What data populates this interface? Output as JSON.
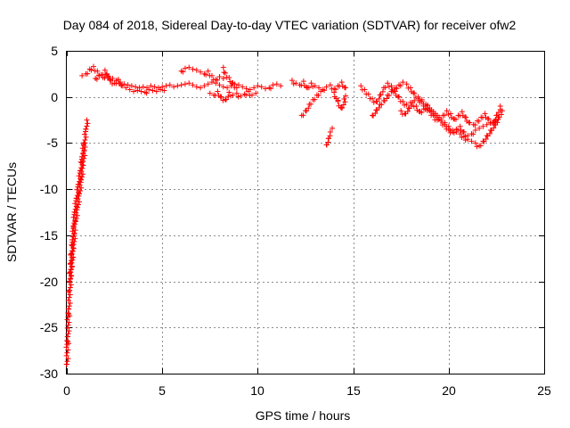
{
  "chart_data": {
    "type": "scatter",
    "title": "Day 084 of 2018, Sidereal Day-to-day VTEC variation (SDTVAR) for receiver ofw2",
    "xlabel": "GPS time / hours",
    "ylabel": "SDTVAR / TECUs",
    "xlim": [
      0,
      25
    ],
    "ylim": [
      -30,
      5
    ],
    "x_ticks": [
      0,
      5,
      10,
      15,
      20,
      25
    ],
    "y_ticks": [
      -30,
      -25,
      -20,
      -15,
      -10,
      -5,
      0,
      5
    ],
    "grid": true,
    "marker": "+",
    "color": "#ff0000",
    "series": [
      {
        "name": "SDTVAR",
        "segments": [
          {
            "x": [
              0.0,
              0.05,
              0.1,
              0.15,
              0.2,
              0.25,
              0.3,
              0.35,
              0.4,
              0.5,
              0.6,
              0.7,
              0.8,
              0.9,
              1.0,
              1.05
            ],
            "y": [
              -29,
              -26,
              -23,
              -21,
              -19,
              -17,
              -15.5,
              -14,
              -12.5,
              -11,
              -9.5,
              -8,
              -6.5,
              -5,
              -3.5,
              -2.5
            ]
          },
          {
            "x": [
              0.15,
              0.25,
              0.35,
              0.45,
              0.55,
              0.65,
              0.75,
              0.85,
              0.95
            ],
            "y": [
              -20,
              -18,
              -16,
              -13.5,
              -12,
              -10.5,
              -9,
              -7,
              -5
            ]
          },
          {
            "x": [
              0.8,
              1.0,
              1.2,
              1.4,
              1.6,
              1.8,
              2.0,
              2.2,
              2.4,
              2.6,
              2.8,
              3.0,
              3.2,
              3.4,
              3.6,
              3.8,
              4.0,
              4.2,
              4.4,
              4.6,
              4.8,
              5.0,
              5.2,
              5.4,
              5.6,
              5.8,
              6.0,
              6.2,
              6.4,
              6.6,
              6.8,
              7.0,
              7.2,
              7.4,
              7.6,
              7.8,
              8.0,
              8.2,
              8.4,
              8.6,
              8.8,
              9.0,
              9.2,
              9.4,
              9.6,
              9.8,
              10.0,
              10.2,
              10.4,
              10.6,
              10.8,
              11.0,
              11.2
            ],
            "y": [
              2.3,
              2.5,
              3.0,
              3.3,
              2.8,
              2.4,
              2.9,
              2.2,
              2.0,
              1.8,
              1.6,
              1.4,
              1.3,
              1.2,
              1.1,
              1.0,
              1.1,
              1.0,
              1.2,
              1.1,
              1.0,
              1.1,
              1.2,
              1.3,
              1.1,
              1.2,
              1.3,
              1.4,
              1.5,
              1.3,
              1.1,
              1.0,
              1.2,
              1.4,
              1.6,
              1.5,
              1.3,
              1.1,
              1.0,
              1.2,
              1.4,
              1.3,
              1.1,
              0.9,
              0.8,
              1.0,
              1.2,
              1.1,
              0.9,
              1.0,
              1.3,
              1.4,
              1.2
            ]
          },
          {
            "x": [
              1.5,
              1.7,
              1.9,
              2.1,
              2.3,
              2.5,
              2.7,
              2.9,
              3.1,
              3.3,
              3.5,
              3.7,
              3.9,
              4.1,
              4.3,
              4.5,
              4.7,
              4.9,
              5.1
            ],
            "y": [
              2.0,
              2.3,
              2.1,
              2.5,
              1.8,
              1.5,
              1.9,
              1.2,
              1.0,
              0.8,
              0.6,
              0.7,
              0.6,
              0.5,
              0.8,
              0.7,
              0.6,
              0.8,
              0.7
            ]
          },
          {
            "x": [
              6.0,
              6.2,
              6.4,
              6.6,
              6.8,
              7.0,
              7.2,
              7.4,
              7.6,
              7.8,
              8.0,
              8.2
            ],
            "y": [
              2.8,
              3.1,
              3.2,
              3.0,
              2.9,
              2.7,
              2.5,
              2.8,
              2.3,
              1.9,
              2.2,
              2.0
            ]
          },
          {
            "x": [
              7.5,
              7.7,
              7.9,
              8.1,
              8.3,
              8.5,
              8.7,
              8.9,
              9.1,
              9.3,
              9.5,
              9.7,
              9.9
            ],
            "y": [
              0.4,
              0.2,
              0.6,
              0.0,
              -0.3,
              0.5,
              0.2,
              0.4,
              0.1,
              0.3,
              0.6,
              0.2,
              0.4
            ]
          },
          {
            "x": [
              8.2,
              8.3,
              8.5,
              8.7,
              8.9
            ],
            "y": [
              3.2,
              2.6,
              2.1,
              1.5,
              1.0
            ]
          },
          {
            "x": [
              11.8,
              12.0,
              12.2,
              12.4,
              12.6,
              12.8,
              13.0,
              13.2,
              13.4,
              13.6,
              13.8,
              14.0,
              14.2,
              14.4,
              14.6
            ],
            "y": [
              1.8,
              1.5,
              1.3,
              1.7,
              1.0,
              1.5,
              1.2,
              1.0,
              0.8,
              1.1,
              1.3,
              0.9,
              1.2,
              1.6,
              1.0
            ]
          },
          {
            "x": [
              12.3,
              12.5,
              12.7,
              12.9,
              13.1,
              13.3
            ],
            "y": [
              -2.0,
              -1.5,
              -0.8,
              -0.3,
              0.2,
              0.6
            ]
          },
          {
            "x": [
              13.6,
              13.7,
              13.8,
              13.9
            ],
            "y": [
              -5.2,
              -4.5,
              -3.8,
              -3.4
            ]
          },
          {
            "x": [
              14.0,
              14.2,
              14.4,
              14.6
            ],
            "y": [
              0.5,
              -0.5,
              -1.2,
              0.1
            ]
          },
          {
            "x": [
              15.4,
              15.6,
              15.8,
              16.0,
              16.2,
              16.4,
              16.6,
              16.8,
              17.0,
              17.2,
              17.4,
              17.6,
              17.8,
              18.0,
              18.2,
              18.4,
              18.6,
              18.8,
              19.0,
              19.2,
              19.4,
              19.6,
              19.8,
              20.0,
              20.2,
              20.4,
              20.6,
              20.8,
              21.0,
              21.2,
              21.4,
              21.6,
              21.8,
              22.0,
              22.2,
              22.4,
              22.6,
              22.8
            ],
            "y": [
              1.2,
              0.8,
              0.3,
              -0.2,
              -0.5,
              0.2,
              1.0,
              1.5,
              1.2,
              0.6,
              0.0,
              -0.5,
              -0.8,
              -0.6,
              -0.4,
              -0.2,
              -0.5,
              -1.0,
              -1.5,
              -2.0,
              -2.5,
              -2.6,
              -3.0,
              -3.5,
              -3.8,
              -3.5,
              -3.2,
              -3.8,
              -4.2,
              -4.0,
              -3.6,
              -3.4,
              -3.2,
              -3.0,
              -2.8,
              -2.6,
              -2.2,
              -1.5
            ]
          },
          {
            "x": [
              16.0,
              16.2,
              16.4,
              16.6,
              16.8,
              17.0,
              17.2,
              17.4,
              17.6,
              17.8,
              18.0,
              18.2,
              18.4,
              18.6,
              18.8,
              19.0,
              19.2,
              19.4,
              19.6,
              19.8,
              20.0,
              20.2,
              20.4,
              20.6,
              20.8,
              21.0,
              21.2,
              21.4,
              21.6,
              21.8,
              22.0,
              22.2,
              22.4,
              22.6
            ],
            "y": [
              -2.0,
              -1.4,
              -0.8,
              -0.4,
              0.2,
              0.6,
              1.0,
              1.3,
              1.6,
              1.4,
              1.0,
              0.4,
              0.0,
              -0.3,
              -0.8,
              -1.2,
              -1.6,
              -2.0,
              -2.4,
              -2.8,
              -3.2,
              -3.6,
              -3.8,
              -4.0,
              -4.3,
              -4.6,
              -4.8,
              -5.0,
              -5.3,
              -4.8,
              -4.2,
              -3.6,
              -3.0,
              -2.4
            ]
          },
          {
            "x": [
              17.5,
              17.7,
              17.9,
              18.1,
              18.3,
              18.5,
              18.7,
              18.9,
              19.1,
              19.3,
              19.5,
              19.7,
              19.9,
              20.1,
              20.3,
              20.5,
              20.7,
              20.9,
              21.1,
              21.3,
              21.5,
              21.7,
              21.9,
              22.1,
              22.3,
              22.5,
              22.7
            ],
            "y": [
              -1.5,
              -1.8,
              -1.2,
              -0.6,
              -1.0,
              -1.6,
              -1.3,
              -0.9,
              -1.4,
              -1.8,
              -2.2,
              -2.0,
              -1.5,
              -1.8,
              -2.4,
              -2.0,
              -1.6,
              -2.2,
              -2.8,
              -3.0,
              -2.6,
              -2.2,
              -1.8,
              -2.4,
              -2.8,
              -2.0,
              -1.0
            ]
          }
        ]
      }
    ]
  }
}
